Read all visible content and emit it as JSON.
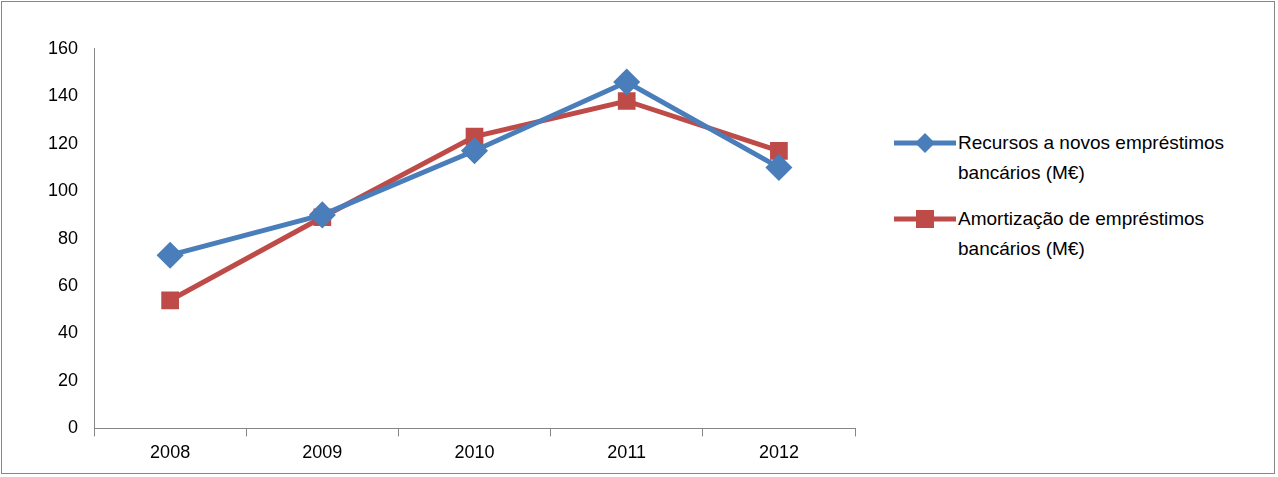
{
  "chart_data": {
    "type": "line",
    "categories": [
      "2008",
      "2009",
      "2010",
      "2011",
      "2012"
    ],
    "series": [
      {
        "name": "Recursos a novos empréstimos bancários (M€)",
        "color": "#4a7ebb",
        "marker": "diamond",
        "values": [
          73,
          90,
          117,
          146,
          110
        ]
      },
      {
        "name": "Amortização de empréstimos bancários (M€)",
        "color": "#be4b48",
        "marker": "square",
        "values": [
          54,
          89,
          123,
          138,
          117
        ]
      }
    ],
    "ylim": [
      0,
      160
    ],
    "yticks": [
      0,
      20,
      40,
      60,
      80,
      100,
      120,
      140,
      160
    ],
    "grid": false,
    "legend": "right"
  }
}
